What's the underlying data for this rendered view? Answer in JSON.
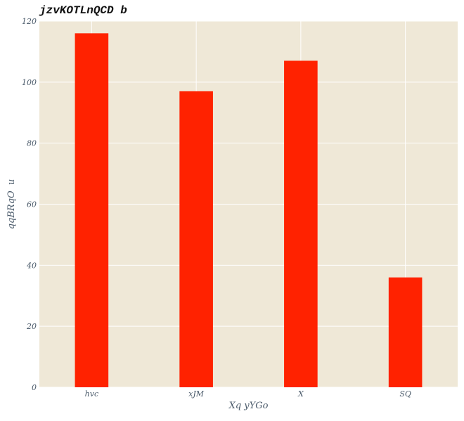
{
  "chart_data": {
    "type": "bar",
    "title": "jzvKOTLnQCD b",
    "xlabel": "Xq yYGo",
    "ylabel": "qqBRqO  u",
    "categories": [
      "hvc",
      "xJM",
      "X",
      "SQ"
    ],
    "values": [
      116,
      97,
      107,
      36
    ],
    "ylim": [
      0,
      120
    ],
    "yticks": [
      "0",
      "20",
      "40",
      "60",
      "80",
      "100",
      "120"
    ],
    "grid": true,
    "bar_color": "#ff2200",
    "plot_background": "#efe8d7"
  }
}
